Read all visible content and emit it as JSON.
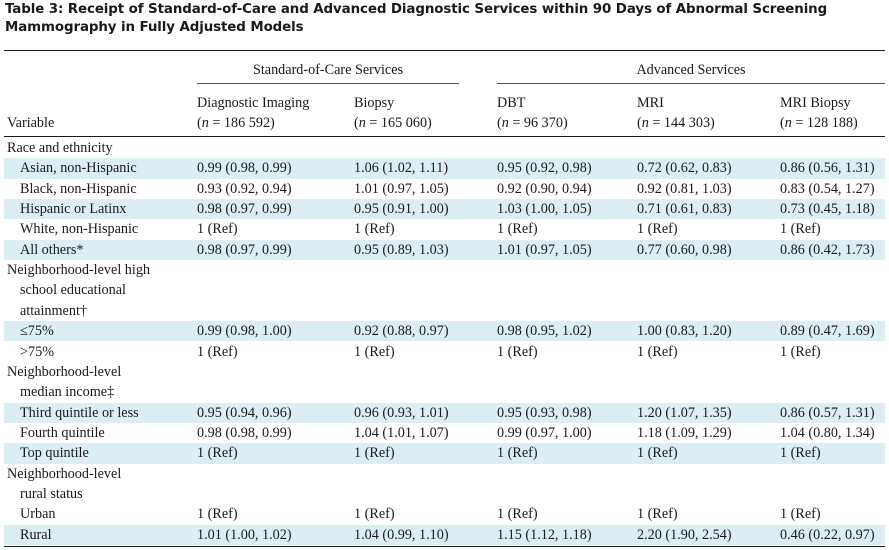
{
  "table": {
    "title_line1": "Table 3: Receipt of Standard-of-Care and Advanced Diagnostic Services within 90 Days of Abnormal Screening",
    "title_line2": "Mammography in Fully Adjusted Models",
    "group_headers": [
      "Standard-of-Care Services",
      "Advanced Services"
    ],
    "variable_header": "Variable",
    "columns": [
      {
        "name": "Diagnostic Imaging",
        "n_label": "n",
        "n_value": "= 186 592)"
      },
      {
        "name": "Biopsy",
        "n_label": "n",
        "n_value": "= 165 060)"
      },
      {
        "name": "DBT",
        "n_label": "n",
        "n_value": "= 96 370)"
      },
      {
        "name": "MRI",
        "n_label": "n",
        "n_value": "= 144 303)"
      },
      {
        "name": "MRI Biopsy",
        "n_label": "n",
        "n_value": "= 128 188)"
      }
    ],
    "rows": [
      {
        "label": "Race and ethnicity",
        "cells": [
          "",
          "",
          "",
          "",
          ""
        ]
      },
      {
        "label": "Asian, non-Hispanic",
        "cells": [
          "0.99 (0.98, 0.99)",
          "1.06 (1.02, 1.11)",
          "0.95 (0.92, 0.98)",
          "0.72 (0.62, 0.83)",
          "0.86 (0.56, 1.31)"
        ]
      },
      {
        "label": "Black, non-Hispanic",
        "cells": [
          "0.93 (0.92, 0.94)",
          "1.01 (0.97, 1.05)",
          "0.92 (0.90, 0.94)",
          "0.92 (0.81, 1.03)",
          "0.83 (0.54, 1.27)"
        ]
      },
      {
        "label": "Hispanic or Latinx",
        "cells": [
          "0.98 (0.97, 0.99)",
          "0.95 (0.91, 1.00)",
          "1.03 (1.00, 1.05)",
          "0.71 (0.61, 0.83)",
          "0.73 (0.45, 1.18)"
        ]
      },
      {
        "label": "White, non-Hispanic",
        "cells": [
          "1 (Ref)",
          "1 (Ref)",
          "1 (Ref)",
          "1 (Ref)",
          "1 (Ref)"
        ]
      },
      {
        "label": "All others*",
        "cells": [
          "0.98 (0.97, 0.99)",
          "0.95 (0.89, 1.03)",
          "1.01 (0.97, 1.05)",
          "0.77 (0.60, 0.98)",
          "0.86 (0.42, 1.73)"
        ]
      },
      {
        "label": "Neighborhood-level high",
        "cells": [
          "",
          "",
          "",
          "",
          ""
        ]
      },
      {
        "label": "school educational",
        "cells": [
          "",
          "",
          "",
          "",
          ""
        ]
      },
      {
        "label": "attainment†",
        "cells": [
          "",
          "",
          "",
          "",
          ""
        ]
      },
      {
        "label": "≤75%",
        "cells": [
          "0.99 (0.98, 1.00)",
          "0.92 (0.88, 0.97)",
          "0.98 (0.95, 1.02)",
          "1.00 (0.83, 1.20)",
          "0.89 (0.47, 1.69)"
        ]
      },
      {
        "label": ">75%",
        "cells": [
          "1 (Ref)",
          "1 (Ref)",
          "1 (Ref)",
          "1 (Ref)",
          "1 (Ref)"
        ]
      },
      {
        "label": "Neighborhood-level",
        "cells": [
          "",
          "",
          "",
          "",
          ""
        ]
      },
      {
        "label": "median income‡",
        "cells": [
          "",
          "",
          "",
          "",
          ""
        ]
      },
      {
        "label": "Third quintile or less",
        "cells": [
          "0.95 (0.94, 0.96)",
          "0.96 (0.93, 1.01)",
          "0.95 (0.93, 0.98)",
          "1.20 (1.07, 1.35)",
          "0.86 (0.57, 1.31)"
        ]
      },
      {
        "label": "Fourth quintile",
        "cells": [
          "0.98 (0.98, 0.99)",
          "1.04 (1.01, 1.07)",
          "0.99 (0.97, 1.00)",
          "1.18 (1.09, 1.29)",
          "1.04 (0.80, 1.34)"
        ]
      },
      {
        "label": "Top quintile",
        "cells": [
          "1 (Ref)",
          "1 (Ref)",
          "1 (Ref)",
          "1 (Ref)",
          "1 (Ref)"
        ]
      },
      {
        "label": "Neighborhood-level",
        "cells": [
          "",
          "",
          "",
          "",
          ""
        ]
      },
      {
        "label": "rural status",
        "cells": [
          "",
          "",
          "",
          "",
          ""
        ]
      },
      {
        "label": "Urban",
        "cells": [
          "1 (Ref)",
          "1 (Ref)",
          "1 (Ref)",
          "1 (Ref)",
          "1 (Ref)"
        ]
      },
      {
        "label": "Rural",
        "cells": [
          "1.01 (1.00, 1.02)",
          "1.04 (0.99, 1.10)",
          "1.15 (1.12, 1.18)",
          "2.20 (1.90, 2.54)",
          "0.46 (0.22, 0.97)"
        ]
      }
    ]
  }
}
